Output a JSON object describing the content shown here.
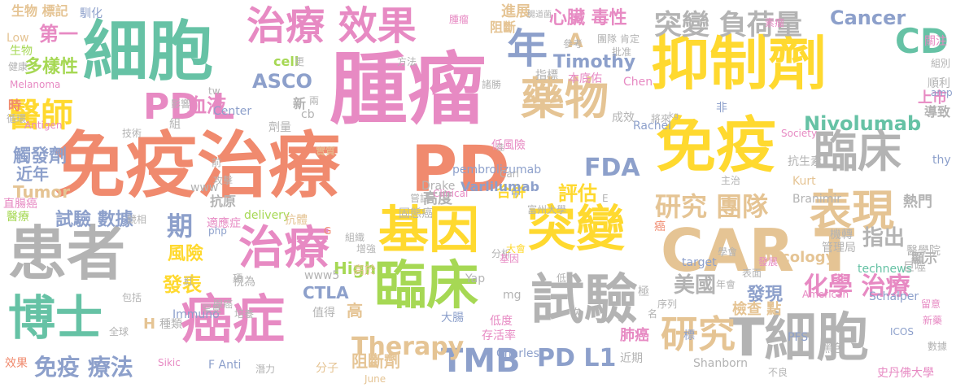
{
  "palette": [
    "#f08a6e",
    "#e78ac3",
    "#8da0cb",
    "#a6d854",
    "#ffd92f",
    "#e5c494",
    "#b3b3b3",
    "#66c2a5"
  ],
  "words": [
    {
      "text": "免疫治療",
      "color": "#f08a6e"
    },
    {
      "text": "腫瘤",
      "color": "#e78ac3"
    },
    {
      "text": "細胞",
      "color": "#66c2a5"
    },
    {
      "text": "抑制劑",
      "color": "#ffd92f"
    },
    {
      "text": "免疫",
      "color": "#ffd92f"
    },
    {
      "text": "患者",
      "color": "#b3b3b3"
    },
    {
      "text": "CAR T",
      "color": "#e5c494"
    },
    {
      "text": "PD",
      "color": "#f08a6e"
    },
    {
      "text": "基因",
      "color": "#ffd92f"
    },
    {
      "text": "突變",
      "color": "#ffd92f"
    },
    {
      "text": "癌症",
      "color": "#e78ac3"
    },
    {
      "text": "臨床",
      "color": "#b3b3b3"
    },
    {
      "text": "試驗",
      "color": "#b3b3b3"
    },
    {
      "text": "T細胞",
      "color": "#b3b3b3"
    },
    {
      "text": "治療",
      "color": "#e78ac3"
    },
    {
      "text": "博士",
      "color": "#66c2a5"
    },
    {
      "text": "治療 效果",
      "color": "#e78ac3"
    },
    {
      "text": "藥物",
      "color": "#e5c494"
    },
    {
      "text": "臨床",
      "color": "#a6d854"
    },
    {
      "text": "表現",
      "color": "#e5c494"
    },
    {
      "text": "TMB",
      "color": "#8da0cb"
    },
    {
      "text": "醫師",
      "color": "#ffd92f"
    },
    {
      "text": "PD L",
      "color": "#e78ac3"
    },
    {
      "text": "突變 負荷量",
      "color": "#b3b3b3"
    },
    {
      "text": "CD",
      "color": "#66c2a5"
    },
    {
      "text": "年",
      "color": "#8da0cb"
    },
    {
      "text": "研究",
      "color": "#e5c494"
    },
    {
      "text": "PD L1",
      "color": "#8da0cb"
    },
    {
      "text": "FDA",
      "color": "#8da0cb"
    },
    {
      "text": "研究 團隊",
      "color": "#e5c494"
    },
    {
      "text": "Nivolumab",
      "color": "#66c2a5"
    },
    {
      "text": "化學 治療",
      "color": "#e78ac3"
    },
    {
      "text": "免疫 療法",
      "color": "#8da0cb"
    },
    {
      "text": "Therapy",
      "color": "#e5c494"
    },
    {
      "text": "Cancer",
      "color": "#8da0cb"
    },
    {
      "text": "Timothy",
      "color": "#8da0cb"
    },
    {
      "text": "ASCO",
      "color": "#8da0cb"
    },
    {
      "text": "第一",
      "color": "#e78ac3"
    },
    {
      "text": "多樣性",
      "color": "#a6d854"
    },
    {
      "text": "心臟 毒性",
      "color": "#e78ac3"
    },
    {
      "text": "評估",
      "color": "#ffd92f"
    },
    {
      "text": "發表",
      "color": "#ffd92f"
    },
    {
      "text": "期",
      "color": "#8da0cb"
    },
    {
      "text": "美國",
      "color": "#b3b3b3"
    },
    {
      "text": "發現",
      "color": "#8da0cb"
    },
    {
      "text": "指出",
      "color": "#b3b3b3"
    },
    {
      "text": "血液",
      "color": "#e78ac3"
    },
    {
      "text": "High",
      "color": "#a6d854"
    },
    {
      "text": "風險",
      "color": "#ffd92f"
    },
    {
      "text": "CTLA",
      "color": "#8da0cb"
    },
    {
      "text": "高度",
      "color": "#b3b3b3"
    },
    {
      "text": "合併",
      "color": "#ffd92f"
    },
    {
      "text": "Tumor",
      "color": "#e5c494"
    },
    {
      "text": "近年",
      "color": "#8da0cb"
    },
    {
      "text": "觸發劑",
      "color": "#8da0cb"
    },
    {
      "text": "試驗 數據",
      "color": "#8da0cb"
    },
    {
      "text": "抗原",
      "color": "#b3b3b3"
    },
    {
      "text": "A",
      "color": "#e5c494"
    },
    {
      "text": "檢查 點",
      "color": "#e5c494"
    },
    {
      "text": "阻斷劑",
      "color": "#e5c494"
    },
    {
      "text": "肺癌",
      "color": "#e78ac3"
    },
    {
      "text": "熱門",
      "color": "#b3b3b3"
    },
    {
      "text": "Oncology",
      "color": "#e5c494"
    },
    {
      "text": "上市",
      "color": "#e78ac3"
    },
    {
      "text": "導致",
      "color": "#b3b3b3"
    },
    {
      "text": "進展",
      "color": "#e5c494"
    },
    {
      "text": "阻斷",
      "color": "#e5c494"
    },
    {
      "text": "cell",
      "color": "#a6d854"
    },
    {
      "text": "pembrolizumab",
      "color": "#8da0cb"
    },
    {
      "text": "Varlilumab",
      "color": "#8da0cb"
    },
    {
      "text": "Rachel",
      "color": "#8da0cb"
    },
    {
      "text": "Chen",
      "color": "#e78ac3"
    },
    {
      "text": "Melanoma",
      "color": "#e78ac3"
    },
    {
      "text": "生物 標記",
      "color": "#e5c494"
    },
    {
      "text": "腫瘤",
      "color": "#e78ac3"
    },
    {
      "text": "機轉",
      "color": "#b3b3b3"
    },
    {
      "text": "管理局",
      "color": "#b3b3b3"
    },
    {
      "text": "顯示",
      "color": "#b3b3b3"
    },
    {
      "text": "technews",
      "color": "#66c2a5"
    },
    {
      "text": "Schalper",
      "color": "#8da0cb"
    },
    {
      "text": "Kurt",
      "color": "#e5c494"
    },
    {
      "text": "Branimir",
      "color": "#b3b3b3"
    },
    {
      "text": "Shanborn",
      "color": "#b3b3b3"
    },
    {
      "text": "PFS",
      "color": "#8da0cb"
    },
    {
      "text": "黑色",
      "color": "#b3b3b3"
    },
    {
      "text": "ICOS",
      "color": "#8da0cb"
    },
    {
      "text": "史丹佛大學",
      "color": "#e78ac3"
    },
    {
      "text": "Charles",
      "color": "#8da0cb"
    },
    {
      "text": "Drake",
      "color": "#b3b3b3"
    },
    {
      "text": "Immuno",
      "color": "#8da0cb"
    },
    {
      "text": "F Anti",
      "color": "#8da0cb"
    },
    {
      "text": "H",
      "color": "#e5c494"
    },
    {
      "text": "種類",
      "color": "#b3b3b3"
    },
    {
      "text": "視為",
      "color": "#b3b3b3"
    },
    {
      "text": "技術",
      "color": "#b3b3b3"
    },
    {
      "text": "組",
      "color": "#b3b3b3"
    },
    {
      "text": "Center",
      "color": "#8da0cb"
    },
    {
      "text": "新",
      "color": "#b3b3b3"
    },
    {
      "text": "劑量",
      "color": "#b3b3b3"
    },
    {
      "text": "時",
      "color": "#f08a6e"
    },
    {
      "text": "循環",
      "color": "#b3b3b3"
    },
    {
      "text": "Antigen",
      "color": "#e78ac3"
    },
    {
      "text": "Low",
      "color": "#e5c494"
    },
    {
      "text": "生物",
      "color": "#a6d854"
    },
    {
      "text": "直腸癌",
      "color": "#e78ac3"
    },
    {
      "text": "醫療",
      "color": "#a6d854"
    },
    {
      "text": "效果",
      "color": "#f08a6e"
    },
    {
      "text": "全球",
      "color": "#b3b3b3"
    },
    {
      "text": "包括",
      "color": "#b3b3b3"
    },
    {
      "text": "www",
      "color": "#b3b3b3"
    },
    {
      "text": "delivery",
      "color": "#a6d854"
    },
    {
      "text": "抗體",
      "color": "#e5c494"
    },
    {
      "text": "適應症",
      "color": "#e78ac3"
    },
    {
      "text": "php",
      "color": "#8da0cb"
    },
    {
      "text": "分析",
      "color": "#b3b3b3"
    },
    {
      "text": "富州大學",
      "color": "#b3b3b3"
    },
    {
      "text": "大會",
      "color": "#ffd92f"
    },
    {
      "text": "Yap",
      "color": "#b3b3b3"
    },
    {
      "text": "增強",
      "color": "#b3b3b3"
    },
    {
      "text": "組織",
      "color": "#b3b3b3"
    },
    {
      "text": "高於",
      "color": "#e5c494"
    },
    {
      "text": "www5",
      "color": "#b3b3b3"
    },
    {
      "text": "基因",
      "color": "#e78ac3"
    },
    {
      "text": "mg",
      "color": "#b3b3b3"
    },
    {
      "text": "高",
      "color": "#e5c494"
    },
    {
      "text": "大腸",
      "color": "#8da0cb"
    },
    {
      "text": "存活率",
      "color": "#e78ac3"
    },
    {
      "text": "低度",
      "color": "#e78ac3"
    },
    {
      "text": "極",
      "color": "#b3b3b3"
    },
    {
      "text": "標",
      "color": "#8da0cb"
    },
    {
      "text": "分子",
      "color": "#e5c494"
    },
    {
      "text": "潛力",
      "color": "#b3b3b3"
    },
    {
      "text": "Sikic",
      "color": "#e78ac3"
    },
    {
      "text": "June",
      "color": "#e5c494"
    },
    {
      "text": "近期",
      "color": "#b3b3b3"
    },
    {
      "text": "不良",
      "color": "#b3b3b3"
    },
    {
      "text": "target",
      "color": "#8da0cb"
    },
    {
      "text": "序列",
      "color": "#b3b3b3"
    },
    {
      "text": "表面",
      "color": "#b3b3b3"
    },
    {
      "text": "發展",
      "color": "#e78ac3"
    },
    {
      "text": "學會",
      "color": "#b3b3b3"
    },
    {
      "text": "醫學院",
      "color": "#b3b3b3"
    },
    {
      "text": "巨噬",
      "color": "#b3b3b3"
    },
    {
      "text": "留意",
      "color": "#e78ac3"
    },
    {
      "text": "新藥",
      "color": "#e78ac3"
    },
    {
      "text": "American",
      "color": "#e78ac3"
    },
    {
      "text": "數據",
      "color": "#b3b3b3"
    },
    {
      "text": "順利",
      "color": "#b3b3b3"
    },
    {
      "text": "amp",
      "color": "#8da0cb"
    },
    {
      "text": "組別",
      "color": "#b3b3b3"
    },
    {
      "text": "關注",
      "color": "#e78ac3"
    },
    {
      "text": "thy",
      "color": "#8da0cb"
    },
    {
      "text": "抗生素",
      "color": "#b3b3b3"
    },
    {
      "text": "Society",
      "color": "#e78ac3"
    },
    {
      "text": "低風險",
      "color": "#e78ac3"
    },
    {
      "text": "非",
      "color": "#8da0cb"
    },
    {
      "text": "成效",
      "color": "#b3b3b3"
    },
    {
      "text": "將來",
      "color": "#b3b3b3"
    },
    {
      "text": "kg",
      "color": "#b3b3b3"
    },
    {
      "text": "參考",
      "color": "#b3b3b3"
    },
    {
      "text": "指標",
      "color": "#b3b3b3"
    },
    {
      "text": "本底佑",
      "color": "#e78ac3"
    },
    {
      "text": "團隊",
      "color": "#b3b3b3"
    },
    {
      "text": "素瘤",
      "color": "#e78ac3"
    },
    {
      "text": "肯定",
      "color": "#b3b3b3"
    },
    {
      "text": "諸勝",
      "color": "#b3b3b3"
    },
    {
      "text": "腸道菌",
      "color": "#b3b3b3"
    },
    {
      "text": "批准",
      "color": "#b3b3b3"
    },
    {
      "text": "馴化",
      "color": "#8da0cb"
    },
    {
      "text": "健康",
      "color": "#b3b3b3"
    },
    {
      "text": "更",
      "color": "#b3b3b3"
    },
    {
      "text": "影響",
      "color": "#b3b3b3"
    },
    {
      "text": "兩",
      "color": "#b3b3b3"
    },
    {
      "text": "cb",
      "color": "#b3b3b3"
    },
    {
      "text": "tw",
      "color": "#b3b3b3"
    },
    {
      "text": "方法",
      "color": "#b3b3b3"
    },
    {
      "text": "前",
      "color": "#b3b3b3"
    },
    {
      "text": "實質",
      "color": "#e5c494"
    },
    {
      "text": "攻擊",
      "color": "#b3b3b3"
    },
    {
      "text": "固態癌",
      "color": "#b3b3b3"
    },
    {
      "text": "嘗試",
      "color": "#b3b3b3"
    },
    {
      "text": "Clinical",
      "color": "#e78ac3"
    },
    {
      "text": "佳",
      "color": "#b3b3b3"
    },
    {
      "text": "Carl",
      "color": "#b3b3b3"
    },
    {
      "text": "中",
      "color": "#8da0cb"
    },
    {
      "text": "E",
      "color": "#b3b3b3"
    },
    {
      "text": "低",
      "color": "#b3b3b3"
    },
    {
      "text": "次",
      "color": "#b3b3b3"
    },
    {
      "text": "值得",
      "color": "#b3b3b3"
    },
    {
      "text": "罕見",
      "color": "#b3b3b3"
    },
    {
      "text": "腺癌",
      "color": "#b3b3b3"
    },
    {
      "text": "培養",
      "color": "#b3b3b3"
    },
    {
      "text": "紅",
      "color": "#b3b3b3"
    },
    {
      "text": "項",
      "color": "#b3b3b3"
    },
    {
      "text": "G",
      "color": "#f08a6e"
    },
    {
      "text": "競相",
      "color": "#b3b3b3"
    },
    {
      "text": "名",
      "color": "#b3b3b3"
    },
    {
      "text": "癌",
      "color": "#f08a6e"
    },
    {
      "text": "年會",
      "color": "#b3b3b3"
    },
    {
      "text": "主治",
      "color": "#b3b3b3"
    },
    {
      "text": "亦子腺",
      "color": "#b3b3b3"
    }
  ]
}
